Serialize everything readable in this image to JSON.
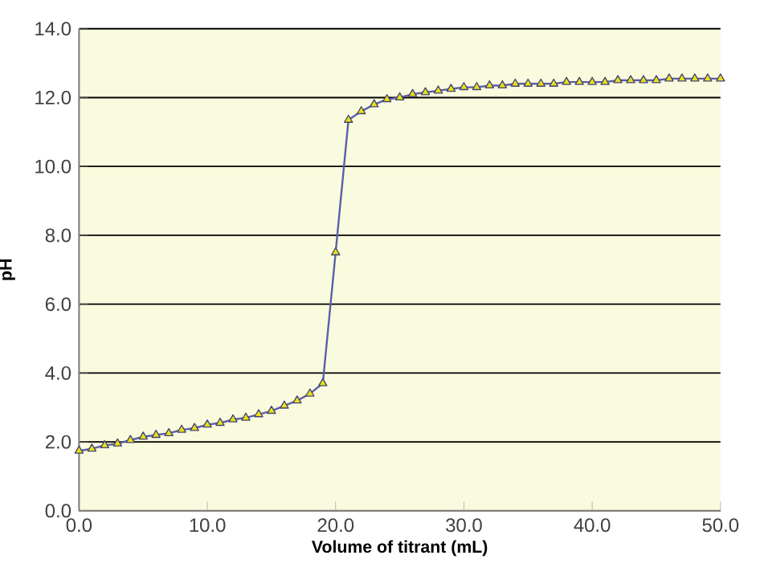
{
  "chart_data": {
    "type": "line",
    "xlabel": "Volume of titrant (mL)",
    "ylabel": "pH",
    "x": [
      0,
      1,
      2,
      3,
      4,
      5,
      6,
      7,
      8,
      9,
      10,
      11,
      12,
      13,
      14,
      15,
      16,
      17,
      18,
      19,
      20,
      21,
      22,
      23,
      24,
      25,
      26,
      27,
      28,
      29,
      30,
      31,
      32,
      33,
      34,
      35,
      36,
      37,
      38,
      39,
      40,
      41,
      42,
      43,
      44,
      45,
      46,
      47,
      48,
      49,
      50
    ],
    "series": [
      {
        "color": "#5b5fa8",
        "values": [
          1.74,
          1.8,
          1.9,
          1.95,
          2.05,
          2.15,
          2.2,
          2.25,
          2.35,
          2.4,
          2.5,
          2.55,
          2.65,
          2.7,
          2.8,
          2.9,
          3.05,
          3.2,
          3.4,
          3.7,
          7.5,
          11.35,
          11.6,
          11.8,
          11.95,
          12.0,
          12.1,
          12.15,
          12.2,
          12.25,
          12.3,
          12.3,
          12.35,
          12.35,
          12.4,
          12.4,
          12.4,
          12.4,
          12.45,
          12.45,
          12.45,
          12.45,
          12.5,
          12.5,
          12.5,
          12.5,
          12.55,
          12.55,
          12.55,
          12.55,
          12.55
        ]
      }
    ],
    "xlim": [
      0,
      50
    ],
    "ylim": [
      0,
      14
    ],
    "xticks": [
      {
        "value": 0,
        "label": "0.0"
      },
      {
        "value": 10,
        "label": "10.0"
      },
      {
        "value": 20,
        "label": "20.0"
      },
      {
        "value": 30,
        "label": "30.0"
      },
      {
        "value": 40,
        "label": "40.0"
      },
      {
        "value": 50,
        "label": "50.0"
      }
    ],
    "yticks": [
      {
        "value": 0,
        "label": "0.0"
      },
      {
        "value": 2,
        "label": "2.0"
      },
      {
        "value": 4,
        "label": "4.0"
      },
      {
        "value": 6,
        "label": "6.0"
      },
      {
        "value": 8,
        "label": "8.0"
      },
      {
        "value": 10,
        "label": "10.0"
      },
      {
        "value": 12,
        "label": "12.0"
      },
      {
        "value": 14,
        "label": "14.0"
      }
    ],
    "grid": "y",
    "marker": "triangle",
    "line_style": "solid"
  }
}
